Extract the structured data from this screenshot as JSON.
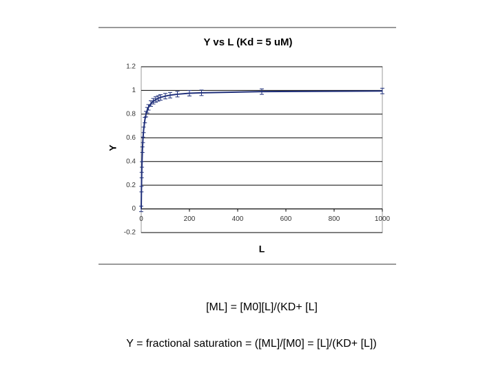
{
  "chart_data": {
    "type": "line",
    "title": "Y vs L (Kd = 5 uM)",
    "x_label": "L",
    "y_label": "Y",
    "x": [
      0,
      1,
      2,
      3,
      5,
      7,
      10,
      15,
      20,
      25,
      30,
      40,
      50,
      60,
      70,
      80,
      100,
      120,
      150,
      200,
      250,
      500,
      1000
    ],
    "series": [
      {
        "name": "Y",
        "color": "#1f2f7a",
        "values": [
          0,
          0.167,
          0.286,
          0.375,
          0.5,
          0.583,
          0.667,
          0.75,
          0.8,
          0.833,
          0.857,
          0.889,
          0.909,
          0.923,
          0.933,
          0.941,
          0.952,
          0.96,
          0.968,
          0.976,
          0.98,
          0.99,
          0.995
        ]
      }
    ],
    "xlim": [
      0,
      1000
    ],
    "xticks": [
      0,
      200,
      400,
      600,
      800,
      1000
    ],
    "ylim": [
      -0.2,
      1.2
    ],
    "yticks": [
      -0.2,
      0,
      0.2,
      0.4,
      0.6,
      0.8,
      1,
      1.2
    ],
    "grid": true
  },
  "equations": [
    "[ML] = [M0][L]/(KD+ [L]",
    "Y = fractional saturation =  ([ML]/[M0] = [L]/(KD+ [L])"
  ]
}
